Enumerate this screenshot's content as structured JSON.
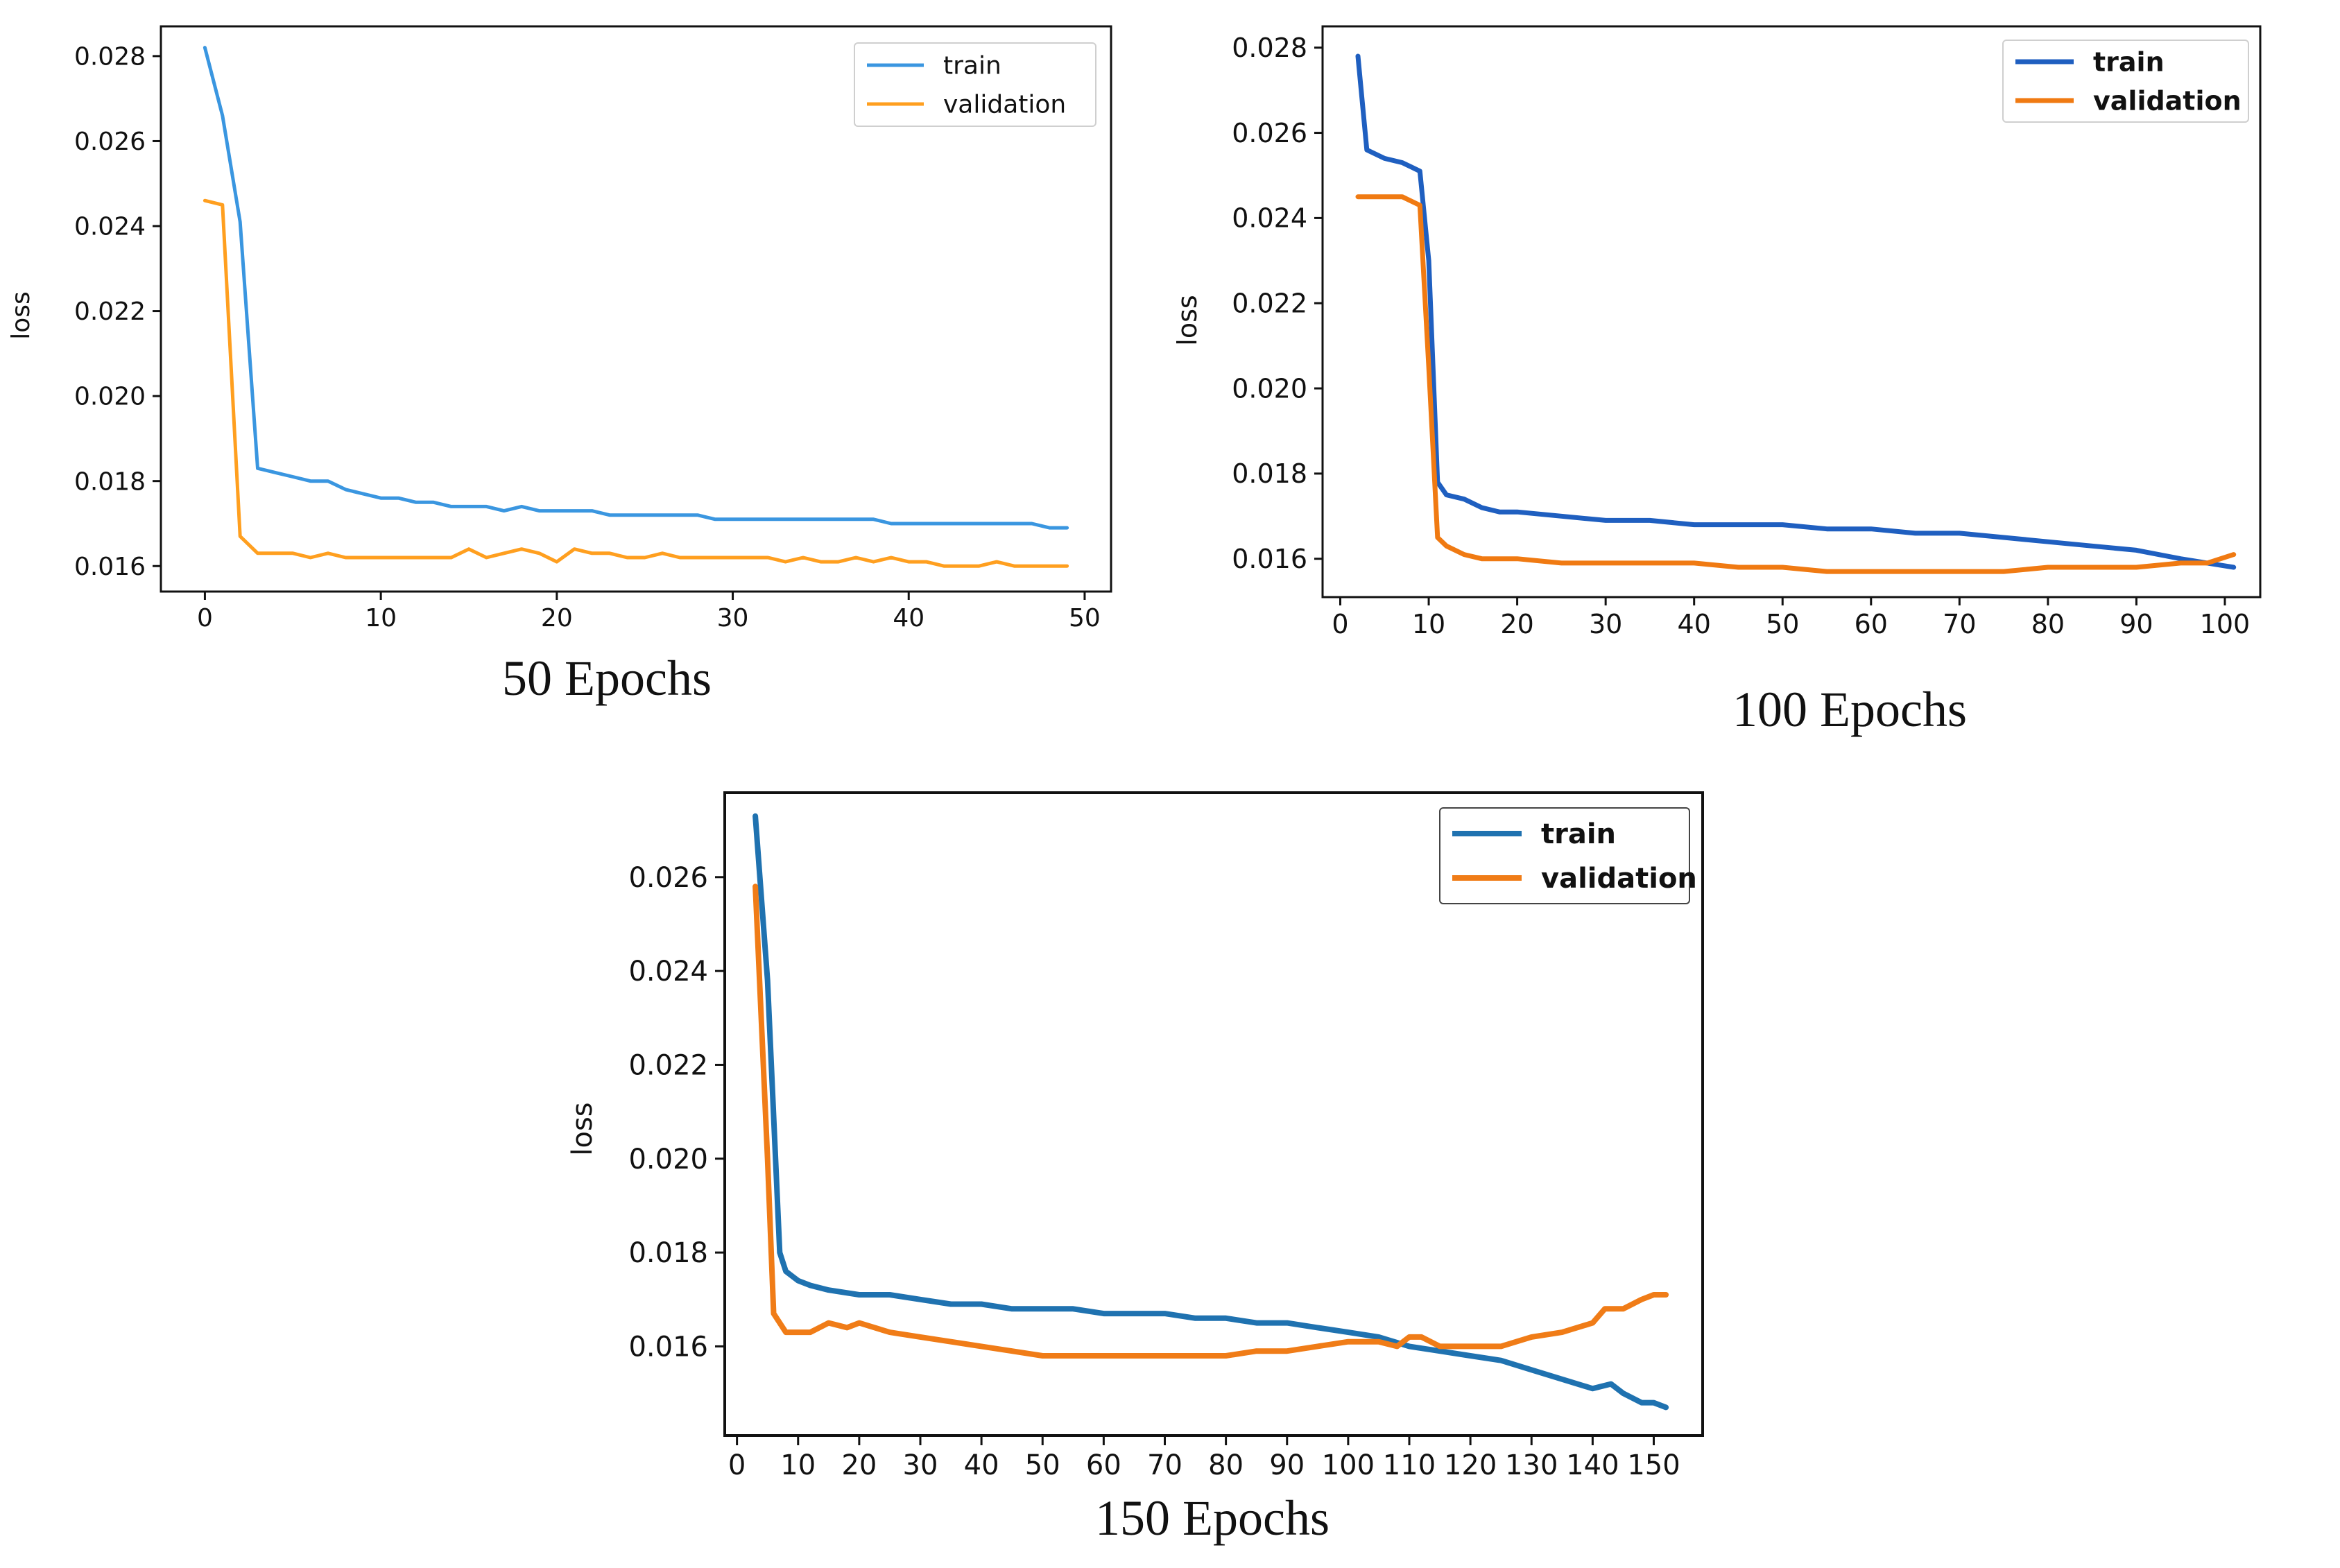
{
  "colors": {
    "background": "#ffffff",
    "axis": "#111111",
    "chart1_train": "#3a96e0",
    "chart1_validation": "#ff9f1f",
    "chart2_train": "#1f5fc0",
    "chart2_validation": "#f07a12",
    "chart3_train": "#1f72b0",
    "chart3_validation": "#f07c17"
  },
  "chart_data": [
    {
      "type": "line",
      "id": "chart-50",
      "caption": "50 Epochs",
      "ylabel": "loss",
      "xlabel": "",
      "xlim": [
        -2.5,
        51.5
      ],
      "ylim": [
        0.0154,
        0.0287
      ],
      "xticks": [
        0,
        10,
        20,
        30,
        40,
        50
      ],
      "xtick_labels": [
        "0",
        "10",
        "20",
        "30",
        "40",
        "50"
      ],
      "yticks": [
        0.016,
        0.018,
        0.02,
        0.022,
        0.024,
        0.026,
        0.028
      ],
      "ytick_labels": [
        "0.016",
        "0.018",
        "0.020",
        "0.022",
        "0.024",
        "0.026",
        "0.028"
      ],
      "legend": {
        "position": "top-right",
        "entries": [
          "train",
          "validation"
        ]
      },
      "series": [
        {
          "name": "train",
          "x": [
            0,
            1,
            2,
            3,
            4,
            5,
            6,
            7,
            8,
            9,
            10,
            11,
            12,
            13,
            14,
            15,
            16,
            17,
            18,
            19,
            20,
            21,
            22,
            23,
            24,
            25,
            26,
            27,
            28,
            29,
            30,
            31,
            32,
            33,
            34,
            35,
            36,
            37,
            38,
            39,
            40,
            41,
            42,
            43,
            44,
            45,
            46,
            47,
            48,
            49
          ],
          "values": [
            0.0282,
            0.0266,
            0.0241,
            0.0183,
            0.0182,
            0.0181,
            0.018,
            0.018,
            0.0178,
            0.0177,
            0.0176,
            0.0176,
            0.0175,
            0.0175,
            0.0174,
            0.0174,
            0.0174,
            0.0173,
            0.0174,
            0.0173,
            0.0173,
            0.0173,
            0.0173,
            0.0172,
            0.0172,
            0.0172,
            0.0172,
            0.0172,
            0.0172,
            0.0171,
            0.0171,
            0.0171,
            0.0171,
            0.0171,
            0.0171,
            0.0171,
            0.0171,
            0.0171,
            0.0171,
            0.017,
            0.017,
            0.017,
            0.017,
            0.017,
            0.017,
            0.017,
            0.017,
            0.017,
            0.0169,
            0.0169
          ]
        },
        {
          "name": "validation",
          "x": [
            0,
            1,
            2,
            3,
            4,
            5,
            6,
            7,
            8,
            9,
            10,
            11,
            12,
            13,
            14,
            15,
            16,
            17,
            18,
            19,
            20,
            21,
            22,
            23,
            24,
            25,
            26,
            27,
            28,
            29,
            30,
            31,
            32,
            33,
            34,
            35,
            36,
            37,
            38,
            39,
            40,
            41,
            42,
            43,
            44,
            45,
            46,
            47,
            48,
            49
          ],
          "values": [
            0.0246,
            0.0245,
            0.0167,
            0.0163,
            0.0163,
            0.0163,
            0.0162,
            0.0163,
            0.0162,
            0.0162,
            0.0162,
            0.0162,
            0.0162,
            0.0162,
            0.0162,
            0.0164,
            0.0162,
            0.0163,
            0.0164,
            0.0163,
            0.0161,
            0.0164,
            0.0163,
            0.0163,
            0.0162,
            0.0162,
            0.0163,
            0.0162,
            0.0162,
            0.0162,
            0.0162,
            0.0162,
            0.0162,
            0.0161,
            0.0162,
            0.0161,
            0.0161,
            0.0162,
            0.0161,
            0.0162,
            0.0161,
            0.0161,
            0.016,
            0.016,
            0.016,
            0.0161,
            0.016,
            0.016,
            0.016,
            0.016
          ]
        }
      ]
    },
    {
      "type": "line",
      "id": "chart-100",
      "caption": "100 Epochs",
      "ylabel": "loss",
      "xlabel": "",
      "xlim": [
        -2,
        104
      ],
      "ylim": [
        0.0151,
        0.0285
      ],
      "xticks": [
        0,
        10,
        20,
        30,
        40,
        50,
        60,
        70,
        80,
        90,
        100
      ],
      "xtick_labels": [
        "0",
        "10",
        "20",
        "30",
        "40",
        "50",
        "60",
        "70",
        "80",
        "90",
        "100"
      ],
      "yticks": [
        0.016,
        0.018,
        0.02,
        0.022,
        0.024,
        0.026,
        0.028
      ],
      "ytick_labels": [
        "0.016",
        "0.018",
        "0.020",
        "0.022",
        "0.024",
        "0.026",
        "0.028"
      ],
      "legend": {
        "position": "top-right",
        "entries": [
          "train",
          "validation"
        ]
      },
      "series": [
        {
          "name": "train",
          "x": [
            2,
            3,
            5,
            7,
            9,
            10,
            11,
            12,
            14,
            16,
            18,
            20,
            25,
            30,
            35,
            40,
            45,
            50,
            55,
            60,
            65,
            70,
            75,
            80,
            85,
            90,
            95,
            98,
            101
          ],
          "values": [
            0.0278,
            0.0256,
            0.0254,
            0.0253,
            0.0251,
            0.023,
            0.0178,
            0.0175,
            0.0174,
            0.0172,
            0.0171,
            0.0171,
            0.017,
            0.0169,
            0.0169,
            0.0168,
            0.0168,
            0.0168,
            0.0167,
            0.0167,
            0.0166,
            0.0166,
            0.0165,
            0.0164,
            0.0163,
            0.0162,
            0.016,
            0.0159,
            0.0158
          ]
        },
        {
          "name": "validation",
          "x": [
            2,
            3,
            5,
            7,
            9,
            10,
            11,
            12,
            14,
            16,
            18,
            20,
            25,
            30,
            35,
            40,
            45,
            50,
            55,
            60,
            65,
            70,
            75,
            80,
            85,
            90,
            95,
            98,
            101
          ],
          "values": [
            0.0245,
            0.0245,
            0.0245,
            0.0245,
            0.0243,
            0.0205,
            0.0165,
            0.0163,
            0.0161,
            0.016,
            0.016,
            0.016,
            0.0159,
            0.0159,
            0.0159,
            0.0159,
            0.0158,
            0.0158,
            0.0157,
            0.0157,
            0.0157,
            0.0157,
            0.0157,
            0.0158,
            0.0158,
            0.0158,
            0.0159,
            0.0159,
            0.0161
          ]
        }
      ]
    },
    {
      "type": "line",
      "id": "chart-150",
      "caption": "150 Epochs",
      "ylabel": "loss",
      "xlabel": "",
      "xlim": [
        -2,
        158
      ],
      "ylim": [
        0.0141,
        0.0278
      ],
      "xticks": [
        0,
        10,
        20,
        30,
        40,
        50,
        60,
        70,
        80,
        90,
        100,
        110,
        120,
        130,
        140,
        150
      ],
      "xtick_labels": [
        "0",
        "10",
        "20",
        "30",
        "40",
        "50",
        "60",
        "70",
        "80",
        "90",
        "100",
        "110",
        "120",
        "130",
        "140",
        "150"
      ],
      "yticks": [
        0.016,
        0.018,
        0.02,
        0.022,
        0.024,
        0.026
      ],
      "ytick_labels": [
        "0.016",
        "0.018",
        "0.020",
        "0.022",
        "0.024",
        "0.026"
      ],
      "legend": {
        "position": "top-right",
        "entries": [
          "train",
          "validation"
        ]
      },
      "series": [
        {
          "name": "train",
          "x": [
            3,
            5,
            7,
            8,
            10,
            12,
            15,
            20,
            25,
            30,
            35,
            40,
            45,
            50,
            55,
            60,
            65,
            70,
            75,
            80,
            85,
            90,
            95,
            100,
            105,
            110,
            115,
            120,
            125,
            130,
            135,
            140,
            143,
            145,
            148,
            150,
            152
          ],
          "values": [
            0.0273,
            0.0238,
            0.018,
            0.0176,
            0.0174,
            0.0173,
            0.0172,
            0.0171,
            0.0171,
            0.017,
            0.0169,
            0.0169,
            0.0168,
            0.0168,
            0.0168,
            0.0167,
            0.0167,
            0.0167,
            0.0166,
            0.0166,
            0.0165,
            0.0165,
            0.0164,
            0.0163,
            0.0162,
            0.016,
            0.0159,
            0.0158,
            0.0157,
            0.0155,
            0.0153,
            0.0151,
            0.0152,
            0.015,
            0.0148,
            0.0148,
            0.0147
          ]
        },
        {
          "name": "validation",
          "x": [
            3,
            5,
            6,
            8,
            10,
            12,
            15,
            18,
            20,
            25,
            30,
            35,
            40,
            45,
            50,
            55,
            60,
            65,
            70,
            75,
            80,
            85,
            90,
            95,
            100,
            105,
            108,
            110,
            112,
            115,
            120,
            125,
            130,
            135,
            140,
            142,
            145,
            148,
            150,
            152
          ],
          "values": [
            0.0258,
            0.02,
            0.0167,
            0.0163,
            0.0163,
            0.0163,
            0.0165,
            0.0164,
            0.0165,
            0.0163,
            0.0162,
            0.0161,
            0.016,
            0.0159,
            0.0158,
            0.0158,
            0.0158,
            0.0158,
            0.0158,
            0.0158,
            0.0158,
            0.0159,
            0.0159,
            0.016,
            0.0161,
            0.0161,
            0.016,
            0.0162,
            0.0162,
            0.016,
            0.016,
            0.016,
            0.0162,
            0.0163,
            0.0165,
            0.0168,
            0.0168,
            0.017,
            0.0171,
            0.0171
          ]
        }
      ]
    }
  ]
}
